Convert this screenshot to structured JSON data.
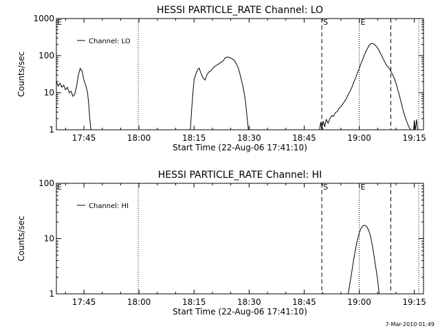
{
  "footer": {
    "timestamp": "7-Mar-2010 01:49"
  },
  "colors": {
    "background": "#ffffff",
    "ink": "#000000"
  },
  "chart_data": [
    {
      "type": "line",
      "title": "HESSI PARTICLE_RATE Channel: LO",
      "xlabel": "Start Time (22-Aug-06 17:41:10)",
      "ylabel": "Counts/sec",
      "yscale": "log",
      "ylim": [
        1,
        1000
      ],
      "xlim_minutes": [
        17.5,
        117.5
      ],
      "x_ticks": [
        {
          "min": 25,
          "label": "17:45"
        },
        {
          "min": 40,
          "label": "18:00"
        },
        {
          "min": 55,
          "label": "18:15"
        },
        {
          "min": 70,
          "label": "18:30"
        },
        {
          "min": 85,
          "label": "18:45"
        },
        {
          "min": 100,
          "label": "19:00"
        },
        {
          "min": 115,
          "label": "19:15"
        }
      ],
      "y_ticks": [
        {
          "value": 1,
          "label": "1"
        },
        {
          "value": 10,
          "label": "10"
        },
        {
          "value": 100,
          "label": "100"
        },
        {
          "value": 1000,
          "label": "1000"
        }
      ],
      "legend": {
        "position": "top-left",
        "entries": [
          "Channel: LO"
        ]
      },
      "markers": [
        {
          "min": 39.8,
          "style": "dotted",
          "label": ""
        },
        {
          "min": 89.8,
          "style": "dashed",
          "label": "S"
        },
        {
          "min": 100.0,
          "style": "dotted",
          "label": "E"
        },
        {
          "min": 108.6,
          "style": "dashed",
          "label": ""
        },
        {
          "min": 116.2,
          "style": "dotted",
          "label": ""
        }
      ],
      "corner_label": "E",
      "segments": [
        [
          [
            17.5,
            20
          ],
          [
            18,
            15
          ],
          [
            18.5,
            18
          ],
          [
            19,
            14
          ],
          [
            19.5,
            16
          ],
          [
            20,
            12
          ],
          [
            20.5,
            14
          ],
          [
            21,
            10
          ],
          [
            21.5,
            11
          ],
          [
            22,
            8
          ],
          [
            22.5,
            9
          ],
          [
            23,
            15
          ],
          [
            23.5,
            30
          ],
          [
            24,
            45
          ],
          [
            24.5,
            38
          ],
          [
            25,
            22
          ],
          [
            25.5,
            16
          ],
          [
            26,
            10
          ],
          [
            26.3,
            5
          ],
          [
            26.6,
            2
          ],
          [
            26.9,
            1
          ]
        ],
        [
          [
            54,
            1
          ],
          [
            54.3,
            3
          ],
          [
            54.7,
            10
          ],
          [
            55,
            22
          ],
          [
            55.5,
            32
          ],
          [
            56,
            42
          ],
          [
            56.4,
            46
          ],
          [
            56.8,
            35
          ],
          [
            57.2,
            28
          ],
          [
            57.6,
            24
          ],
          [
            58,
            22
          ],
          [
            58.5,
            30
          ],
          [
            59,
            36
          ],
          [
            59.5,
            38
          ],
          [
            60,
            44
          ],
          [
            60.5,
            50
          ],
          [
            61,
            54
          ],
          [
            61.5,
            58
          ],
          [
            62,
            62
          ],
          [
            62.5,
            68
          ],
          [
            63,
            74
          ],
          [
            63.5,
            88
          ],
          [
            64,
            92
          ],
          [
            64.5,
            90
          ],
          [
            65,
            86
          ],
          [
            65.5,
            80
          ],
          [
            66,
            74
          ],
          [
            66.5,
            60
          ],
          [
            67,
            48
          ],
          [
            67.5,
            32
          ],
          [
            68,
            20
          ],
          [
            68.5,
            12
          ],
          [
            69,
            6
          ],
          [
            69.4,
            2.5
          ],
          [
            69.8,
            1
          ]
        ],
        [
          [
            89.2,
            1
          ],
          [
            89.5,
            1.6
          ],
          [
            89.8,
            1
          ],
          [
            90.2,
            1.7
          ],
          [
            90.6,
            1.2
          ],
          [
            91,
            1.9
          ],
          [
            91.5,
            1.5
          ],
          [
            92,
            2
          ],
          [
            92.5,
            2.4
          ],
          [
            93,
            2.3
          ],
          [
            93.5,
            2.9
          ],
          [
            94,
            3.1
          ],
          [
            94.5,
            3.8
          ],
          [
            95,
            4.2
          ],
          [
            95.5,
            5
          ],
          [
            96,
            5.8
          ],
          [
            96.5,
            7
          ],
          [
            97,
            9
          ],
          [
            97.5,
            11
          ],
          [
            98,
            14
          ],
          [
            98.5,
            19
          ],
          [
            99,
            25
          ],
          [
            99.5,
            34
          ],
          [
            100,
            45
          ],
          [
            100.5,
            62
          ],
          [
            101,
            82
          ],
          [
            101.5,
            110
          ],
          [
            102,
            140
          ],
          [
            102.5,
            175
          ],
          [
            103,
            205
          ],
          [
            103.5,
            215
          ],
          [
            104,
            205
          ],
          [
            104.5,
            185
          ],
          [
            105,
            160
          ],
          [
            105.5,
            130
          ],
          [
            106,
            105
          ],
          [
            106.5,
            82
          ],
          [
            107,
            66
          ],
          [
            107.5,
            54
          ],
          [
            108,
            48
          ],
          [
            108.5,
            40
          ],
          [
            109,
            32
          ],
          [
            109.5,
            25
          ],
          [
            110,
            18
          ],
          [
            110.5,
            12
          ],
          [
            111,
            8
          ],
          [
            111.5,
            5
          ],
          [
            112,
            3.2
          ],
          [
            112.5,
            2.2
          ],
          [
            113,
            1.6
          ],
          [
            113.5,
            1.2
          ],
          [
            114,
            1
          ]
        ],
        [
          [
            114.8,
            1
          ],
          [
            115,
            1.8
          ],
          [
            115.3,
            1
          ],
          [
            115.6,
            1.9
          ],
          [
            115.9,
            1
          ]
        ]
      ]
    },
    {
      "type": "line",
      "title": "HESSI PARTICLE_RATE Channel: HI",
      "xlabel": "Start Time (22-Aug-06 17:41:10)",
      "ylabel": "Counts/sec",
      "yscale": "log",
      "ylim": [
        1,
        100
      ],
      "xlim_minutes": [
        17.5,
        117.5
      ],
      "x_ticks": [
        {
          "min": 25,
          "label": "17:45"
        },
        {
          "min": 40,
          "label": "18:00"
        },
        {
          "min": 55,
          "label": "18:15"
        },
        {
          "min": 70,
          "label": "18:30"
        },
        {
          "min": 85,
          "label": "18:45"
        },
        {
          "min": 100,
          "label": "19:00"
        },
        {
          "min": 115,
          "label": "19:15"
        }
      ],
      "y_ticks": [
        {
          "value": 1,
          "label": "1"
        },
        {
          "value": 10,
          "label": "10"
        },
        {
          "value": 100,
          "label": "100"
        }
      ],
      "legend": {
        "position": "top-left",
        "entries": [
          "Channel: HI"
        ]
      },
      "markers": [
        {
          "min": 39.8,
          "style": "dotted",
          "label": ""
        },
        {
          "min": 89.8,
          "style": "dashed",
          "label": "S"
        },
        {
          "min": 100.0,
          "style": "dotted",
          "label": "E"
        },
        {
          "min": 108.6,
          "style": "dashed",
          "label": ""
        },
        {
          "min": 116.2,
          "style": "dotted",
          "label": ""
        }
      ],
      "corner_label": "E",
      "segments": [
        [
          [
            97,
            1
          ],
          [
            97.5,
            1.6
          ],
          [
            98,
            2.6
          ],
          [
            98.5,
            4.2
          ],
          [
            99,
            6.5
          ],
          [
            99.5,
            9.5
          ],
          [
            100,
            12.5
          ],
          [
            100.5,
            15.5
          ],
          [
            101,
            17
          ],
          [
            101.5,
            17.5
          ],
          [
            102,
            16.5
          ],
          [
            102.5,
            14.5
          ],
          [
            103,
            11.5
          ],
          [
            103.5,
            8
          ],
          [
            104,
            5
          ],
          [
            104.5,
            3
          ],
          [
            105,
            1.8
          ],
          [
            105.4,
            1
          ]
        ]
      ]
    }
  ]
}
